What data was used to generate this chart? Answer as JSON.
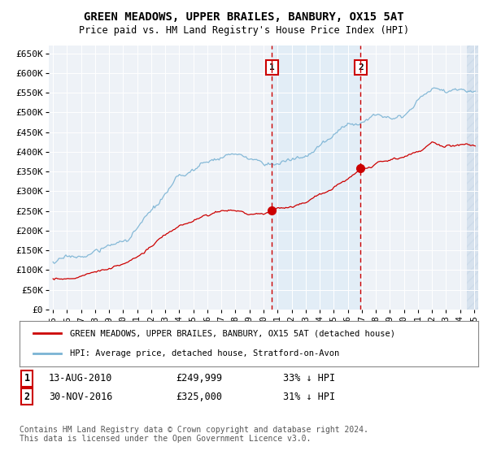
{
  "title": "GREEN MEADOWS, UPPER BRAILES, BANBURY, OX15 5AT",
  "subtitle": "Price paid vs. HM Land Registry's House Price Index (HPI)",
  "ylim": [
    0,
    670000
  ],
  "yticks": [
    0,
    50000,
    100000,
    150000,
    200000,
    250000,
    300000,
    350000,
    400000,
    450000,
    500000,
    550000,
    600000,
    650000
  ],
  "ytick_labels": [
    "£0",
    "£50K",
    "£100K",
    "£150K",
    "£200K",
    "£250K",
    "£300K",
    "£350K",
    "£400K",
    "£450K",
    "£500K",
    "£550K",
    "£600K",
    "£650K"
  ],
  "sale1_date": 2010.6,
  "sale1_label": "1",
  "sale1_price": 249999,
  "sale2_date": 2016.92,
  "sale2_label": "2",
  "sale2_price": 325000,
  "legend_line1": "GREEN MEADOWS, UPPER BRAILES, BANBURY, OX15 5AT (detached house)",
  "legend_line2": "HPI: Average price, detached house, Stratford-on-Avon",
  "table_row1_date": "13-AUG-2010",
  "table_row1_price": "£249,999",
  "table_row1_pct": "33% ↓ HPI",
  "table_row2_date": "30-NOV-2016",
  "table_row2_price": "£325,000",
  "table_row2_pct": "31% ↓ HPI",
  "footer": "Contains HM Land Registry data © Crown copyright and database right 2024.\nThis data is licensed under the Open Government Licence v3.0.",
  "hpi_color": "#7ab3d4",
  "property_color": "#cc0000",
  "vline_color": "#cc0000",
  "shade_color": "#d8eaf6",
  "background_color": "#ffffff",
  "plot_bg_color": "#eef2f7",
  "hatch_color": "#c8d8e8",
  "num_box_color": "#cc0000",
  "xlim_start": 1995,
  "xlim_end": 2025.3
}
